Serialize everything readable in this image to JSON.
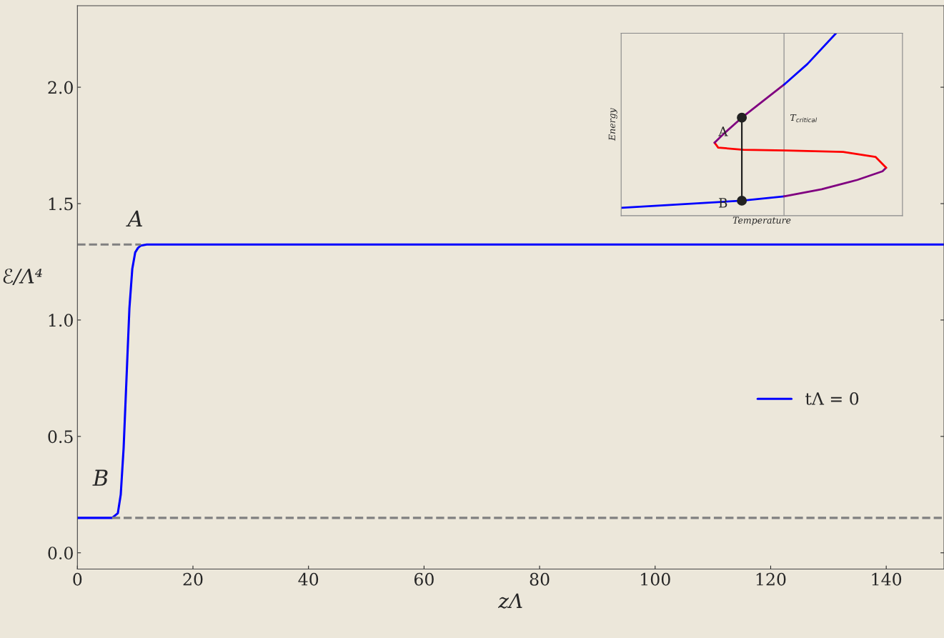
{
  "chart_data": [
    {
      "type": "line",
      "xlabel": "zΛ",
      "ylabel": "ℰ/Λ⁴",
      "xlim": [
        0,
        150
      ],
      "ylim": [
        -0.07,
        2.35
      ],
      "xticks": [
        0,
        20,
        40,
        60,
        80,
        100,
        120,
        140
      ],
      "yticks": [
        {
          "value": 0,
          "label": "0.0"
        },
        0.5,
        {
          "value": 1,
          "label": "1.0"
        },
        1.5,
        {
          "value": 2,
          "label": "2.0"
        }
      ],
      "grid": false,
      "legend": "right",
      "series": [
        {
          "name": "tΛ = 0",
          "color": "#0000ff",
          "x": [
            0,
            6,
            7,
            7.5,
            8,
            8.5,
            9,
            9.5,
            10,
            10.5,
            11,
            12,
            150
          ],
          "values": [
            0.15,
            0.15,
            0.17,
            0.25,
            0.45,
            0.75,
            1.05,
            1.22,
            1.29,
            1.31,
            1.32,
            1.324,
            1.324
          ]
        },
        {
          "color": "#808080",
          "line_style": "dashed",
          "x": [
            0,
            11
          ],
          "values": [
            1.324,
            1.324
          ]
        },
        {
          "color": "#808080",
          "line_style": "dashed",
          "x": [
            6,
            150
          ],
          "values": [
            0.15,
            0.15
          ]
        }
      ],
      "annotations": [
        "A",
        "B"
      ]
    },
    {
      "type": "other",
      "xlabel": "Temperature",
      "ylabel": "Energy",
      "annotations": [
        "A",
        "B",
        "T$_{critical}$"
      ]
    }
  ]
}
